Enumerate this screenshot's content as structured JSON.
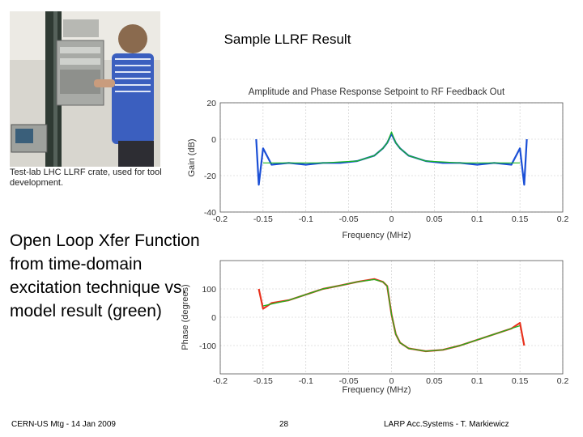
{
  "slide": {
    "title": "Sample LLRF Result",
    "photo_caption": "Test-lab LHC LLRF crate, used for tool development.",
    "description": "Open Loop Xfer Function from time-domain excitation technique vs. model result (green)",
    "footer_left": "CERN-US Mtg - 14 Jan 2009",
    "footer_page": "28",
    "footer_right": "LARP Acc.Systems - T. Markiewicz"
  },
  "colors": {
    "measured_gain": "#1a4fd6",
    "measured_phase": "#e8321e",
    "model": "#19b820",
    "grid": "#c8c8c8"
  },
  "chart_data": [
    {
      "type": "line",
      "title": "Amplitude and Phase Response Setpoint to RF Feedback Out",
      "xlabel": "Frequency (MHz)",
      "ylabel": "Gain (dB)",
      "xlim": [
        -0.2,
        0.2
      ],
      "ylim": [
        -40,
        20
      ],
      "xticks": [
        "-0.2",
        "-0.15",
        "-0.1",
        "-0.05",
        "0",
        "0.05",
        "0.1",
        "0.15",
        "0.2"
      ],
      "yticks": [
        "20",
        "0",
        "-20",
        "-40"
      ],
      "grid": true,
      "series": [
        {
          "x": [
            -0.158,
            -0.155,
            -0.15,
            -0.14,
            -0.12,
            -0.1,
            -0.08,
            -0.06,
            -0.04,
            -0.02,
            -0.01,
            -0.005,
            0,
            0.005,
            0.01,
            0.02,
            0.04,
            0.06,
            0.08,
            0.1,
            0.12,
            0.14,
            0.15,
            0.155,
            0.158
          ],
          "y": [
            0,
            -25,
            -5,
            -14,
            -13,
            -14,
            -13,
            -13,
            -12,
            -9,
            -5,
            -2,
            3,
            -2,
            -5,
            -9,
            -12,
            -13,
            -13,
            -14,
            -13,
            -14,
            -5,
            -25,
            0
          ]
        },
        {
          "x": [
            -0.15,
            -0.12,
            -0.1,
            -0.08,
            -0.06,
            -0.04,
            -0.02,
            -0.01,
            -0.005,
            0,
            0.005,
            0.01,
            0.02,
            0.04,
            0.06,
            0.08,
            0.1,
            0.12,
            0.15
          ],
          "y": [
            -13,
            -13,
            -13,
            -13,
            -12.5,
            -12,
            -9,
            -5,
            -2,
            4,
            -2,
            -5,
            -9,
            -12,
            -12.5,
            -13,
            -13,
            -13,
            -13
          ]
        }
      ]
    },
    {
      "type": "line",
      "xlabel": "Frequency (MHz)",
      "ylabel": "Phase (degrees)",
      "xlim": [
        -0.2,
        0.2
      ],
      "ylim": [
        -200,
        200
      ],
      "xticks": [
        "-0.2",
        "-0.15",
        "-0.1",
        "-0.05",
        "0",
        "0.05",
        "0.1",
        "0.15",
        "0.2"
      ],
      "yticks": [
        "100",
        "0",
        "-100"
      ],
      "grid": true,
      "series": [
        {
          "x": [
            -0.155,
            -0.15,
            -0.14,
            -0.12,
            -0.1,
            -0.08,
            -0.06,
            -0.04,
            -0.02,
            -0.01,
            -0.005,
            0,
            0.005,
            0.01,
            0.02,
            0.04,
            0.06,
            0.08,
            0.1,
            0.12,
            0.14,
            0.15,
            0.155
          ],
          "y": [
            100,
            30,
            50,
            60,
            80,
            100,
            112,
            125,
            135,
            125,
            110,
            10,
            -60,
            -90,
            -110,
            -120,
            -115,
            -100,
            -80,
            -60,
            -40,
            -20,
            -100
          ]
        },
        {
          "x": [
            -0.15,
            -0.12,
            -0.1,
            -0.08,
            -0.06,
            -0.04,
            -0.02,
            -0.01,
            -0.005,
            0,
            0.005,
            0.01,
            0.02,
            0.04,
            0.06,
            0.08,
            0.1,
            0.12,
            0.15
          ],
          "y": [
            40,
            60,
            80,
            100,
            112,
            125,
            133,
            125,
            110,
            10,
            -60,
            -90,
            -110,
            -120,
            -115,
            -100,
            -80,
            -60,
            -30
          ]
        }
      ]
    }
  ]
}
